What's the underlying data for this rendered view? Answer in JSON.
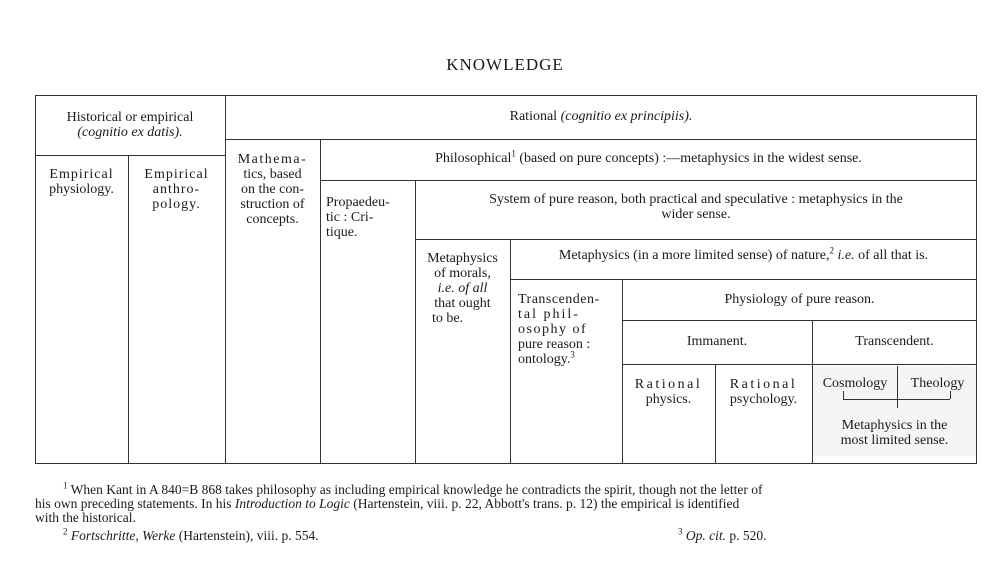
{
  "title": "KNOWLEDGE",
  "table": {
    "historical": {
      "line1": "Historical or empirical",
      "line2": "(cognitio ex datis)."
    },
    "empirical_physiology": {
      "line1": "Empirical",
      "line2": "physiology."
    },
    "empirical_anthropology": {
      "line1": "Empirical",
      "line2": "anthro-",
      "line3": "pology."
    },
    "rational": {
      "text": "Rational",
      "latin": "(cognitio ex principiis)."
    },
    "mathematics": {
      "line1": "Mathema-",
      "line2": "tics, based",
      "line3": "on the con-",
      "line4": "struction of",
      "line5": "concepts."
    },
    "philosophical": {
      "text": "Philosophical",
      "sup": "1",
      "rest": "(based on pure concepts) :—metaphysics in the widest sense."
    },
    "propaedeutic": {
      "line1": "Propaedeu-",
      "line2": "tic :  Cri-",
      "line3": "tique."
    },
    "system": {
      "line1": "System of pure reason, both practical and speculative : metaphysics in the",
      "line2": "wider sense."
    },
    "morals": {
      "line1": "Metaphysics",
      "line2": "of morals,",
      "line3": "i.e. of all",
      "line4": "that ought",
      "line5": "to be."
    },
    "nature": {
      "text": "Metaphysics (in a more limited sense) of nature,",
      "sup": "2",
      "ie": "i.e.",
      "rest": "of all that is."
    },
    "transcendental": {
      "line1": "Transcenden-",
      "line2": "tal  phil-",
      "line3": "osophy  of",
      "line4": "pure reason :",
      "line5": "ontology.",
      "sup": "3"
    },
    "physiology": "Physiology of pure reason.",
    "immanent": "Immanent.",
    "transcendent": "Transcendent.",
    "rational_physics": {
      "line1": "Rational",
      "line2": "physics."
    },
    "rational_psychology": {
      "line1": "Rational",
      "line2": "psychology."
    },
    "cosmology": "Cosmology",
    "theology": "Theology",
    "limited": {
      "line1": "Metaphysics in the",
      "line2": "most limited sense."
    }
  },
  "footnotes": {
    "fn1": {
      "num": "1",
      "a": "When Kant in A 840=B 868 takes philosophy as including empirical knowledge he contradicts the spirit, though not the letter of",
      "b": "his own preceding statements.  In his",
      "b_italic": "Introduction to Logic",
      "b_rest": "(Hartenstein, viii. p. 22, Abbott's trans. p. 12) the empirical is identified",
      "c": "with the historical."
    },
    "fn2": {
      "num": "2",
      "italic": "Fortschritte, Werke",
      "rest": "(Hartenstein), viii. p. 554."
    },
    "fn3": {
      "num": "3",
      "italic": "Op. cit.",
      "rest": "p. 520."
    }
  }
}
